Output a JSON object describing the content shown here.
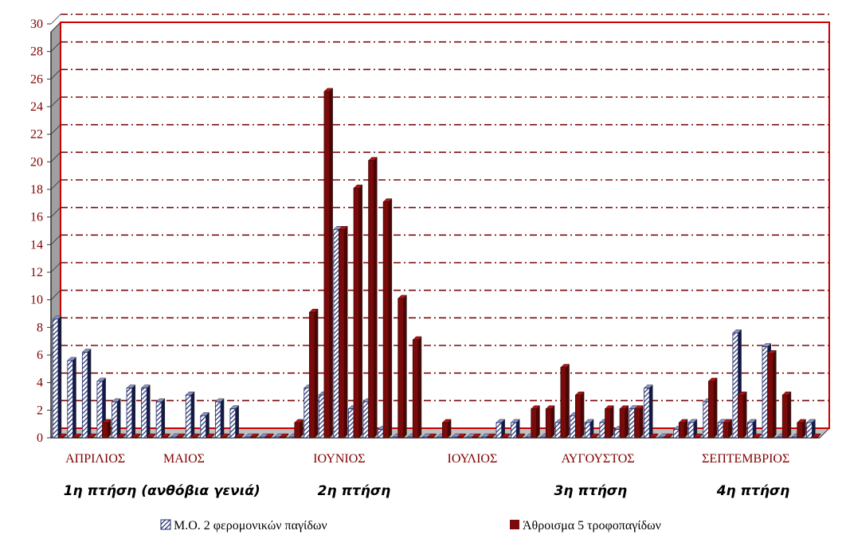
{
  "chart_data": {
    "type": "bar",
    "ylim": [
      0,
      30
    ],
    "yticks": [
      0,
      2,
      4,
      6,
      8,
      10,
      12,
      14,
      16,
      18,
      20,
      22,
      24,
      26,
      28,
      30
    ],
    "grid": true,
    "legend_placement": "bottom",
    "series": [
      {
        "name": "Μ.Ο. 2 φερομονικών παγίδων",
        "color": "#1f2a6b",
        "values": [
          8.6,
          5.6,
          6.2,
          4.1,
          2.6,
          3.6,
          3.6,
          2.6,
          0,
          3.1,
          1.6,
          2.6,
          2.1,
          0,
          0,
          0,
          0,
          3.6,
          3.1,
          15.1,
          2.1,
          2.6,
          0.6,
          0,
          0,
          0,
          0,
          0,
          0,
          0,
          1.1,
          1.1,
          0,
          0,
          1.1,
          1.6,
          1.1,
          1.1,
          0.6,
          2.1,
          3.6,
          0,
          0.6,
          1.1,
          2.6,
          1.1,
          7.6,
          1.1,
          6.6,
          0,
          0,
          1.1
        ]
      },
      {
        "name": "Άθροισμα 5 τροφοπαγίδων",
        "color": "#7b0a0a",
        "values": [
          0,
          0,
          0,
          1.1,
          0,
          0,
          0,
          0,
          0,
          0,
          0,
          0,
          0,
          0,
          0,
          0,
          1.1,
          9.1,
          25.1,
          15.1,
          18.1,
          20.1,
          17.1,
          10.1,
          7.1,
          0,
          1.1,
          0,
          0,
          0,
          0,
          0,
          2.1,
          2.1,
          5.1,
          3.1,
          0,
          2.1,
          2.1,
          2.1,
          0,
          0,
          1.1,
          0,
          4.1,
          1.1,
          3.1,
          0,
          6.1,
          3.1,
          1.1,
          0
        ]
      }
    ],
    "month_labels": [
      "ΑΠΡΙΛΙΟΣ",
      "ΜΑΙΟΣ",
      "ΙΟΥΝΙΟΣ",
      "ΙΟΥΛΙΟΣ",
      "ΑΥΓΟΥΣΤΟΣ",
      "ΣΕΠΤΕΜΒΡΙΟΣ"
    ],
    "month_positions": [
      2.5,
      8.5,
      19,
      28,
      36.5,
      46.5
    ],
    "flight_labels": [
      "1η πτήση (ανθόβια γενιά)",
      "2η πτήση",
      "3η πτήση",
      "4η πτήση"
    ],
    "flight_positions": [
      7,
      20,
      36,
      47
    ]
  }
}
